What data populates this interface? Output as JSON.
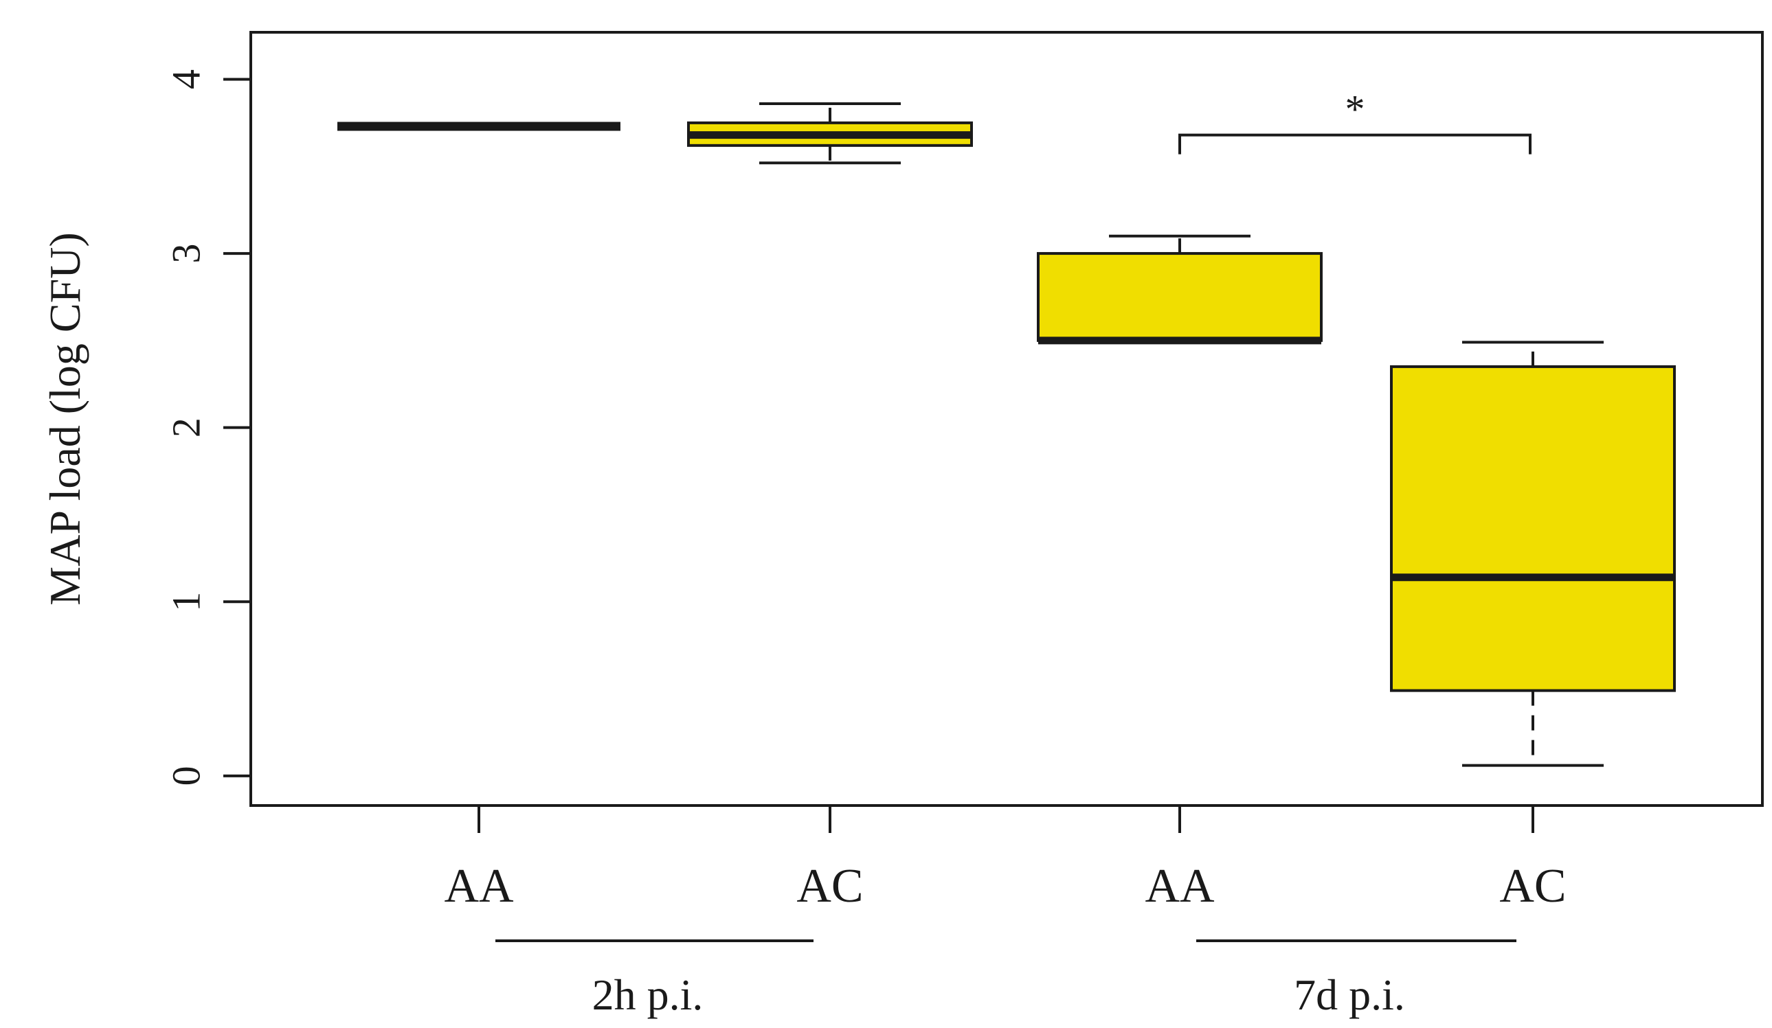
{
  "chart_data": {
    "type": "box",
    "ylabel": "MAP load (log CFU)",
    "xlabel": "",
    "ylim": [
      -0.17,
      4.27
    ],
    "yticks": [
      0,
      1,
      2,
      3,
      4
    ],
    "grid": false,
    "fill_color": "#f0de00",
    "categories": [
      "AA",
      "AC",
      "AA",
      "AC"
    ],
    "groups": [
      {
        "label": "2h p.i.",
        "members": [
          0,
          1
        ]
      },
      {
        "label": "7d p.i.",
        "members": [
          2,
          3
        ]
      }
    ],
    "boxes": [
      {
        "category": "AA",
        "group": "2h p.i.",
        "whisker_low": 3.73,
        "q1": 3.73,
        "median": 3.73,
        "q3": 3.73,
        "whisker_high": 3.73
      },
      {
        "category": "AC",
        "group": "2h p.i.",
        "whisker_low": 3.52,
        "q1": 3.62,
        "median": 3.68,
        "q3": 3.75,
        "whisker_high": 3.86
      },
      {
        "category": "AA",
        "group": "7d p.i.",
        "whisker_low": 2.5,
        "q1": 2.5,
        "median": 2.5,
        "q3": 3.0,
        "whisker_high": 3.1
      },
      {
        "category": "AC",
        "group": "7d p.i.",
        "whisker_low": 0.06,
        "q1": 0.49,
        "median": 1.14,
        "q3": 2.35,
        "whisker_high": 2.49
      }
    ],
    "significance": [
      {
        "from": 2,
        "to": 3,
        "y": 3.68,
        "label": "*"
      }
    ]
  }
}
